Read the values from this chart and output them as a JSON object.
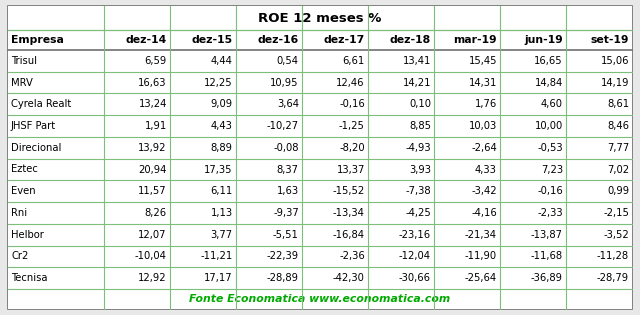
{
  "title": "ROE 12 meses %",
  "columns": [
    "Empresa",
    "dez-14",
    "dez-15",
    "dez-16",
    "dez-17",
    "dez-18",
    "mar-19",
    "jun-19",
    "set-19"
  ],
  "rows": [
    [
      "Trisul",
      "6,59",
      "4,44",
      "0,54",
      "6,61",
      "13,41",
      "15,45",
      "16,65",
      "15,06"
    ],
    [
      "MRV",
      "16,63",
      "12,25",
      "10,95",
      "12,46",
      "14,21",
      "14,31",
      "14,84",
      "14,19"
    ],
    [
      "Cyrela Realt",
      "13,24",
      "9,09",
      "3,64",
      "-0,16",
      "0,10",
      "1,76",
      "4,60",
      "8,61"
    ],
    [
      "JHSF Part",
      "1,91",
      "4,43",
      "-10,27",
      "-1,25",
      "8,85",
      "10,03",
      "10,00",
      "8,46"
    ],
    [
      "Direcional",
      "13,92",
      "8,89",
      "-0,08",
      "-8,20",
      "-4,93",
      "-2,64",
      "-0,53",
      "7,77"
    ],
    [
      "Eztec",
      "20,94",
      "17,35",
      "8,37",
      "13,37",
      "3,93",
      "4,33",
      "7,23",
      "7,02"
    ],
    [
      "Even",
      "11,57",
      "6,11",
      "1,63",
      "-15,52",
      "-7,38",
      "-3,42",
      "-0,16",
      "0,99"
    ],
    [
      "Rni",
      "8,26",
      "1,13",
      "-9,37",
      "-13,34",
      "-4,25",
      "-4,16",
      "-2,33",
      "-2,15"
    ],
    [
      "Helbor",
      "12,07",
      "3,77",
      "-5,51",
      "-16,84",
      "-23,16",
      "-21,34",
      "-13,87",
      "-3,52"
    ],
    [
      "Cr2",
      "-10,04",
      "-11,21",
      "-22,39",
      "-2,36",
      "-12,04",
      "-11,90",
      "-11,68",
      "-11,28"
    ],
    [
      "Tecnisa",
      "12,92",
      "17,17",
      "-28,89",
      "-42,30",
      "-30,66",
      "-25,64",
      "-36,89",
      "-28,79"
    ]
  ],
  "footer": "Fonte Economatica www.economatica.com",
  "bg_color": "#e8e8e8",
  "border_color": "#707070",
  "title_color": "#000000",
  "header_text_color": "#000000",
  "cell_text_color": "#000000",
  "footer_color": "#00aa00",
  "grid_color": "#7bbf7b",
  "col_widths": [
    1.45,
    1.0,
    1.0,
    1.0,
    1.0,
    1.0,
    1.0,
    1.0,
    1.0
  ],
  "title_fontsize": 9.5,
  "header_fontsize": 7.8,
  "cell_fontsize": 7.2,
  "footer_fontsize": 7.8
}
